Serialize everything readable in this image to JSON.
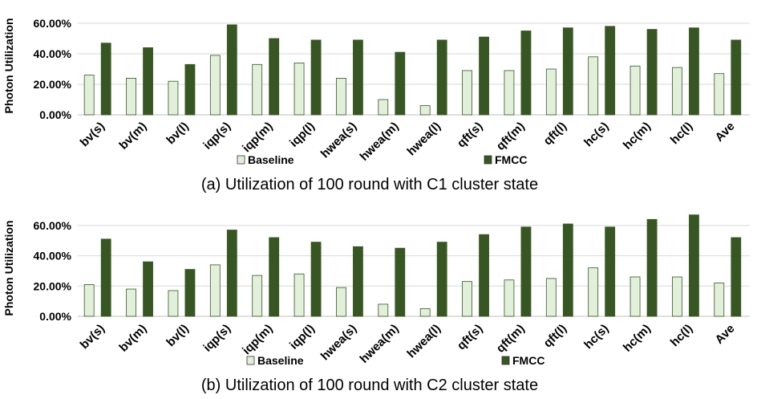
{
  "colors": {
    "baseline": "#e2efda",
    "fmcc": "#375623",
    "bar_edge": "#375623"
  },
  "chart_data": [
    {
      "type": "bar",
      "title": "(a) Utilization of 100 round with C1 cluster state",
      "ylabel": "Photon Utilization",
      "ylim": [
        0,
        0.7
      ],
      "yticks": [
        "0.00%",
        "20.00%",
        "40.00%",
        "60.00%"
      ],
      "ytick_values": [
        0,
        0.2,
        0.4,
        0.6
      ],
      "grid": true,
      "legend_position": "bottom",
      "categories": [
        "bv(s)",
        "bv(m)",
        "bv(l)",
        "iqp(s)",
        "iqp(m)",
        "iqp(l)",
        "hwea(s)",
        "hwea(m)",
        "hwea(l)",
        "qft(s)",
        "qft(m)",
        "qft(l)",
        "hc(s)",
        "hc(m)",
        "hc(l)",
        "Ave"
      ],
      "series": [
        {
          "name": "Baseline",
          "values": [
            0.26,
            0.24,
            0.22,
            0.39,
            0.33,
            0.34,
            0.24,
            0.1,
            0.06,
            0.29,
            0.29,
            0.3,
            0.38,
            0.32,
            0.31,
            0.27
          ]
        },
        {
          "name": "FMCC",
          "values": [
            0.47,
            0.44,
            0.33,
            0.59,
            0.5,
            0.49,
            0.49,
            0.41,
            0.49,
            0.51,
            0.55,
            0.57,
            0.58,
            0.56,
            0.57,
            0.49
          ]
        }
      ]
    },
    {
      "type": "bar",
      "title": "(b) Utilization of 100 round with C2 cluster state",
      "ylabel": "Photon Utilization",
      "ylim": [
        0,
        0.7
      ],
      "yticks": [
        "0.00%",
        "20.00%",
        "40.00%",
        "60.00%"
      ],
      "ytick_values": [
        0,
        0.2,
        0.4,
        0.6
      ],
      "grid": true,
      "legend_position": "bottom",
      "categories": [
        "bv(s)",
        "bv(m)",
        "bv(l)",
        "iqp(s)",
        "iqp(m)",
        "iqp(l)",
        "hwea(s)",
        "hwea(m)",
        "hwea(l)",
        "qft(s)",
        "qft(m)",
        "qft(l)",
        "hc(s)",
        "hc(m)",
        "hc(l)",
        "Ave"
      ],
      "series": [
        {
          "name": "Baseline",
          "values": [
            0.21,
            0.18,
            0.17,
            0.34,
            0.27,
            0.28,
            0.19,
            0.08,
            0.05,
            0.23,
            0.24,
            0.25,
            0.32,
            0.26,
            0.26,
            0.22
          ]
        },
        {
          "name": "FMCC",
          "values": [
            0.51,
            0.36,
            0.31,
            0.57,
            0.52,
            0.49,
            0.46,
            0.45,
            0.49,
            0.54,
            0.59,
            0.61,
            0.59,
            0.64,
            0.67,
            0.52
          ]
        }
      ]
    }
  ]
}
